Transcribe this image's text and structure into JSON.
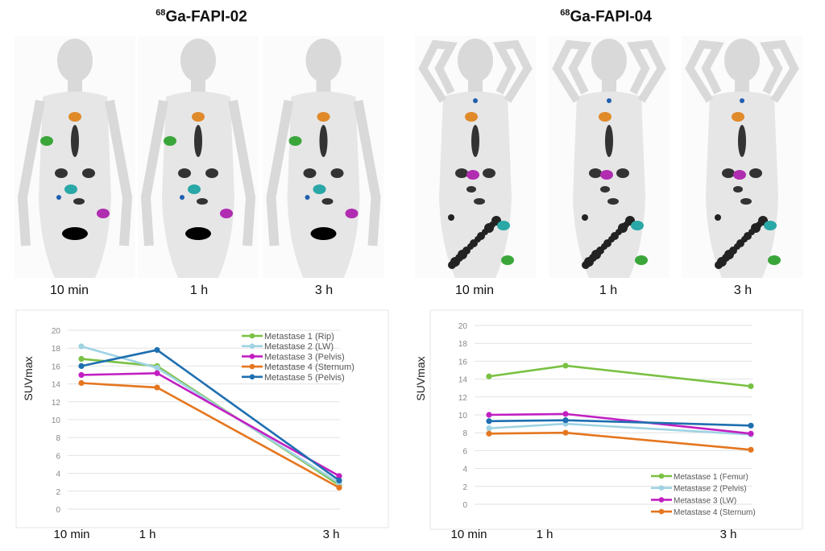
{
  "figure": {
    "left_title": {
      "prefix": "68",
      "name": "Ga-FAPI-02"
    },
    "right_title": {
      "prefix": "68",
      "name": "Ga-FAPI-04"
    },
    "left_image_labels": [
      "10 min",
      "1 h",
      "3 h"
    ],
    "right_image_labels": [
      "10 min",
      "1 h",
      "3 h"
    ]
  },
  "chart_data": [
    {
      "type": "line",
      "title": "",
      "xlabel": "",
      "ylabel": "SUVmax",
      "categories": [
        "10 min",
        "1 h",
        "3 h"
      ],
      "ylim": [
        0,
        20
      ],
      "yticks": [
        0,
        2,
        4,
        6,
        8,
        10,
        12,
        14,
        16,
        18,
        20
      ],
      "grid": true,
      "legend": "top-right",
      "series": [
        {
          "name": "Metastase 1 (Rip)",
          "color": "#7ac143",
          "values": [
            16.8,
            16.0,
            2.7
          ]
        },
        {
          "name": "Metastase 2 (LW)",
          "color": "#9fd3e3",
          "values": [
            18.2,
            15.8,
            2.9
          ]
        },
        {
          "name": "Metastase 3 (Pelvis)",
          "color": "#c21fc2",
          "values": [
            15.0,
            15.2,
            3.7
          ]
        },
        {
          "name": "Metastase 4 (Sternum)",
          "color": "#e5761f",
          "values": [
            14.1,
            13.6,
            2.4
          ]
        },
        {
          "name": "Metastase 5 (Pelvis)",
          "color": "#1f6fb0",
          "values": [
            16.0,
            17.8,
            3.2
          ]
        }
      ]
    },
    {
      "type": "line",
      "title": "",
      "xlabel": "",
      "ylabel": "SUVmax",
      "categories": [
        "10 min",
        "1 h",
        "3 h"
      ],
      "ylim": [
        0,
        20
      ],
      "yticks": [
        0,
        2,
        4,
        6,
        8,
        10,
        12,
        14,
        16,
        18,
        20
      ],
      "grid": true,
      "legend": "bottom-right",
      "series": [
        {
          "name": "Metastase 1 (Femur)",
          "color": "#7ac143",
          "values": [
            14.3,
            15.5,
            13.2
          ]
        },
        {
          "name": "Metastase 2 (Pelvis)",
          "color": "#9fd3e3",
          "values": [
            8.5,
            9.0,
            7.8
          ]
        },
        {
          "name": "Metastase 3 (LW)",
          "color": "#c21fc2",
          "values": [
            10.0,
            10.1,
            7.9
          ]
        },
        {
          "name": "Metastase 4 (Sternum)",
          "color": "#e5761f",
          "values": [
            7.9,
            8.0,
            6.1
          ]
        },
        {
          "name": "",
          "color": "#1f6fb0",
          "values": [
            9.3,
            9.4,
            8.8
          ]
        }
      ]
    }
  ]
}
